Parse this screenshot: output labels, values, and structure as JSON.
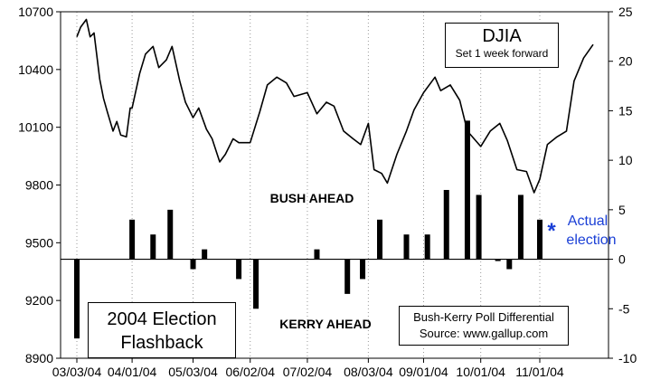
{
  "chart_data": {
    "type": "line+bar",
    "title": "DJIA",
    "subtitle": "Set 1 week forward",
    "left_axis": {
      "ylim": [
        8900,
        10700
      ],
      "ticks": [
        "10700",
        "10400",
        "10100",
        "9800",
        "9500",
        "9200",
        "8900"
      ]
    },
    "right_axis": {
      "ylim": [
        -10,
        25
      ],
      "ticks": [
        "25",
        "20",
        "15",
        "10",
        "5",
        "0",
        "-5",
        "-10"
      ]
    },
    "x_ticks": [
      "03/03/04",
      "04/01/04",
      "05/03/04",
      "06/02/04",
      "07/02/04",
      "08/03/04",
      "09/01/04",
      "10/01/04",
      "11/01/04"
    ],
    "grid": "vertical dotted lines at date ticks",
    "series": [
      {
        "name": "DJIA",
        "type": "line",
        "color": "#000000",
        "x": [
          "03/03/04",
          "03/05/04",
          "03/08/04",
          "03/10/04",
          "03/12/04",
          "03/15/04",
          "03/17/04",
          "03/19/04",
          "03/22/04",
          "03/24/04",
          "03/26/04",
          "03/29/04",
          "03/31/04",
          "04/01/04",
          "04/05/04",
          "04/08/04",
          "04/12/04",
          "04/15/04",
          "04/19/04",
          "04/22/04",
          "04/26/04",
          "04/29/04",
          "05/03/04",
          "05/06/04",
          "05/10/04",
          "05/13/04",
          "05/17/04",
          "05/20/04",
          "05/24/04",
          "05/27/04",
          "06/02/04",
          "06/07/04",
          "06/11/04",
          "06/16/04",
          "06/21/04",
          "06/25/04",
          "07/02/04",
          "07/07/04",
          "07/12/04",
          "07/16/04",
          "07/21/04",
          "07/26/04",
          "07/30/04",
          "08/03/04",
          "08/06/04",
          "08/10/04",
          "08/13/04",
          "08/18/04",
          "08/23/04",
          "08/27/04",
          "09/01/04",
          "09/07/04",
          "09/10/04",
          "09/15/04",
          "09/20/04",
          "09/24/04",
          "10/01/04",
          "10/06/04",
          "10/11/04",
          "10/15/04",
          "10/20/04",
          "10/25/04",
          "10/29/04",
          "11/01/04",
          "11/05/04",
          "11/10/04",
          "11/15/04",
          "11/19/04",
          "11/24/04",
          "11/29/04"
        ],
        "values": [
          10570,
          10620,
          10660,
          10570,
          10590,
          10350,
          10250,
          10180,
          10080,
          10130,
          10060,
          10050,
          10200,
          10200,
          10380,
          10480,
          10520,
          10410,
          10450,
          10520,
          10340,
          10230,
          10150,
          10200,
          10090,
          10040,
          9920,
          9960,
          10040,
          10020,
          10020,
          10180,
          10320,
          10360,
          10330,
          10260,
          10280,
          10170,
          10230,
          10210,
          10080,
          10040,
          10010,
          10120,
          9880,
          9860,
          9810,
          9960,
          10080,
          10190,
          10280,
          10360,
          10290,
          10320,
          10240,
          10080,
          10000,
          10080,
          10120,
          10030,
          9880,
          9870,
          9760,
          9830,
          10010,
          10050,
          10080,
          10340,
          10460,
          10530
        ]
      },
      {
        "name": "Bush-Kerry Poll Differential",
        "type": "bar",
        "color": "#000000",
        "x": [
          "03/03/04",
          "04/01/04",
          "04/12/04",
          "04/21/04",
          "05/03/04",
          "05/09/04",
          "05/27/04",
          "06/05/04",
          "07/07/04",
          "07/23/04",
          "07/31/04",
          "08/09/04",
          "08/23/04",
          "09/03/04",
          "09/13/04",
          "09/24/04",
          "09/30/04",
          "10/10/04",
          "10/16/04",
          "10/22/04",
          "11/01/04"
        ],
        "values": [
          -8,
          4,
          2.5,
          5,
          -1,
          1,
          -2,
          -5,
          1,
          -3.5,
          -2,
          4,
          2.5,
          2.5,
          7,
          14,
          6.5,
          0,
          -1,
          6.5,
          4
        ]
      }
    ],
    "annotations": {
      "bush_ahead": "BUSH AHEAD",
      "kerry_ahead": "KERRY AHEAD",
      "actual_star": "*",
      "actual_line1": "Actual",
      "actual_line2": "election",
      "flashback_line1": "2004 Election",
      "flashback_line2": "Flashback",
      "source_line1": "Bush-Kerry Poll Differential",
      "source_line2": "Source: www.gallup.com"
    },
    "colors": {
      "accent_blue": "#1a3fd6"
    }
  }
}
